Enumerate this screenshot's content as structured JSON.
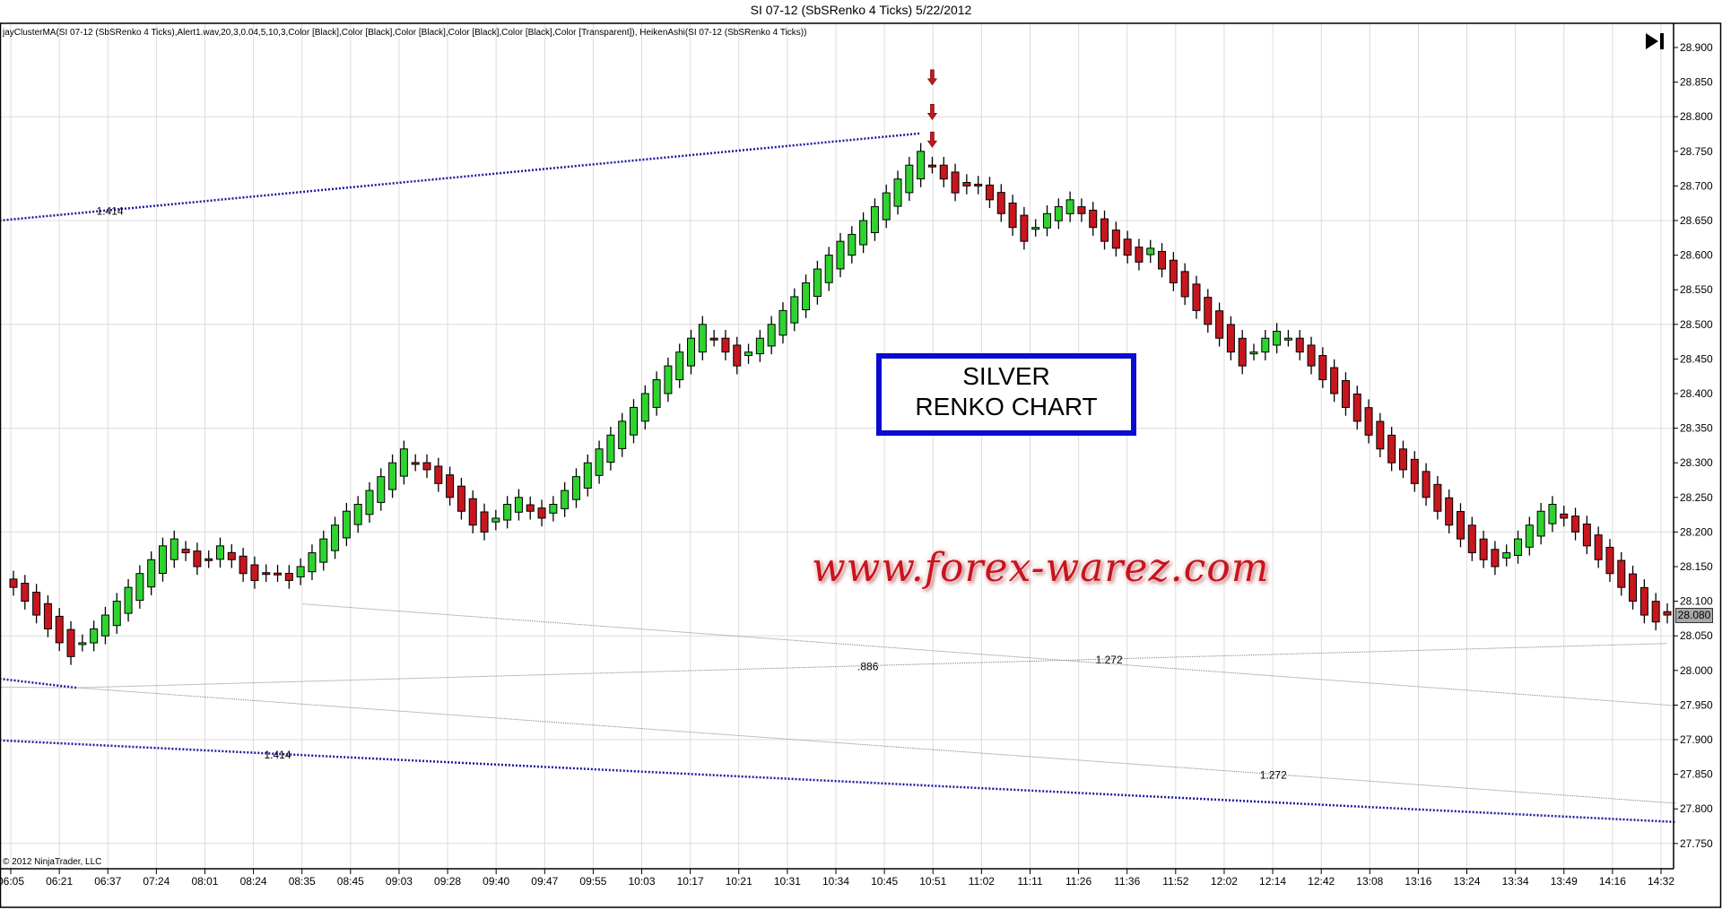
{
  "window": {
    "title": "SI 07-12 (SbSRenko 4 Ticks)  5/22/2012",
    "indicator_label": "jayClusterMA(SI 07-12 (SbSRenko 4 Ticks),Alert1.wav,20,3,0.04,5,10,3,Color [Black],Color [Black],Color [Black],Color [Black],Color [Black],Color [Transparent]), HeikenAshi(SI 07-12 (SbSRenko 4 Ticks))",
    "copyright": "© 2012 NinjaTrader, LLC",
    "skip_icon": "skip-to-end-icon",
    "annotation_box": {
      "line1": "SILVER",
      "line2": "RENKO CHART",
      "border_color": "#0a0ad2"
    },
    "watermark": "www.forex-warez.com",
    "last_price": "28.080"
  },
  "chart_data": {
    "type": "candlestick",
    "style": "Heiken Ashi on Renko bars",
    "colors": {
      "up": "#2fd32f",
      "down": "#c8161e",
      "outline": "#000000",
      "fib_blue": "#1a1aa0",
      "trend_gray": "#808080",
      "alert_arrow": "#c8161e"
    },
    "ylim": [
      27.72,
      28.93
    ],
    "y_ticks": [
      "28.900",
      "28.850",
      "28.800",
      "28.750",
      "28.700",
      "28.650",
      "28.600",
      "28.550",
      "28.500",
      "28.450",
      "28.400",
      "28.350",
      "28.300",
      "28.250",
      "28.200",
      "28.150",
      "28.100",
      "28.050",
      "28.000",
      "27.950",
      "27.900",
      "27.850",
      "27.800",
      "27.750"
    ],
    "x_ticks": [
      "06:05",
      "06:21",
      "06:37",
      "07:24",
      "08:01",
      "08:24",
      "08:35",
      "08:45",
      "09:03",
      "09:28",
      "09:40",
      "09:47",
      "09:55",
      "10:03",
      "10:17",
      "10:21",
      "10:31",
      "10:34",
      "10:45",
      "10:51",
      "11:02",
      "11:11",
      "11:26",
      "11:36",
      "11:52",
      "12:02",
      "12:14",
      "12:42",
      "13:08",
      "13:16",
      "13:24",
      "13:34",
      "13:49",
      "14:16",
      "14:32"
    ],
    "grid": true,
    "closes": [
      28.12,
      28.1,
      28.08,
      28.06,
      28.04,
      28.02,
      28.04,
      28.06,
      28.08,
      28.1,
      28.12,
      28.14,
      28.16,
      28.18,
      28.19,
      28.17,
      28.15,
      28.16,
      28.18,
      28.16,
      28.14,
      28.13,
      28.14,
      28.14,
      28.13,
      28.15,
      28.17,
      28.19,
      28.21,
      28.23,
      28.24,
      28.26,
      28.28,
      28.3,
      28.32,
      28.3,
      28.29,
      28.27,
      28.25,
      28.23,
      28.21,
      28.2,
      28.22,
      28.24,
      28.25,
      28.23,
      28.22,
      28.24,
      28.26,
      28.28,
      28.3,
      28.32,
      28.34,
      28.36,
      28.38,
      28.4,
      28.42,
      28.44,
      28.46,
      28.48,
      28.5,
      28.48,
      28.46,
      28.44,
      28.46,
      28.48,
      28.5,
      28.52,
      28.54,
      28.56,
      28.58,
      28.6,
      28.62,
      28.63,
      28.65,
      28.67,
      28.69,
      28.71,
      28.73,
      28.75,
      28.73,
      28.71,
      28.69,
      28.7,
      28.7,
      28.68,
      28.66,
      28.64,
      28.62,
      28.64,
      28.66,
      28.67,
      28.68,
      28.66,
      28.64,
      28.62,
      28.61,
      28.6,
      28.59,
      28.61,
      28.58,
      28.56,
      28.54,
      28.52,
      28.5,
      28.48,
      28.46,
      28.44,
      28.46,
      28.48,
      28.49,
      28.48,
      28.46,
      28.44,
      28.42,
      28.4,
      28.38,
      28.36,
      28.34,
      28.32,
      28.3,
      28.29,
      28.27,
      28.25,
      28.23,
      28.21,
      28.19,
      28.17,
      28.16,
      28.15,
      28.17,
      28.19,
      28.21,
      28.23,
      28.24,
      28.22,
      28.2,
      28.18,
      28.16,
      28.14,
      28.12,
      28.1,
      28.08,
      28.07,
      28.08
    ],
    "trend_lines": [
      {
        "name": "fib-upper",
        "from": [
          -1.2,
          28.65
        ],
        "to": [
          79,
          28.776
        ],
        "color": "blue",
        "label": "1.414",
        "label_at": 8.4
      },
      {
        "name": "fib-short",
        "from": [
          -1.2,
          27.988
        ],
        "to": [
          5.5,
          27.975
        ],
        "color": "blue"
      },
      {
        "name": "base-short",
        "from": [
          -1.2,
          27.976
        ],
        "to": [
          5.5,
          27.975
        ],
        "color": "gray"
      },
      {
        "name": "rising",
        "from": [
          5.5,
          27.975
        ],
        "to": [
          144,
          28.039
        ],
        "color": "gray",
        "labels": [
          {
            "text": ".886",
            "at": 74.4
          },
          {
            "text": "1.272",
            "at": 95.4
          }
        ]
      },
      {
        "name": "falling-b",
        "from": [
          25.2,
          28.096
        ],
        "to": [
          144.8,
          27.949
        ],
        "color": "gray"
      },
      {
        "name": "falling-c",
        "from": [
          5.5,
          27.975
        ],
        "to": [
          144.8,
          27.808
        ],
        "color": "gray",
        "label": "1.272",
        "label_at": 109.7
      },
      {
        "name": "fib-lower",
        "from": [
          -1.2,
          27.899
        ],
        "to": [
          144.8,
          27.781
        ],
        "color": "blue",
        "label": "1.414",
        "label_at": 23
      }
    ],
    "alert_arrows": [
      {
        "bar": 80,
        "price": 28.855
      },
      {
        "bar": 80,
        "price": 28.805
      },
      {
        "bar": 80,
        "price": 28.765
      }
    ]
  }
}
